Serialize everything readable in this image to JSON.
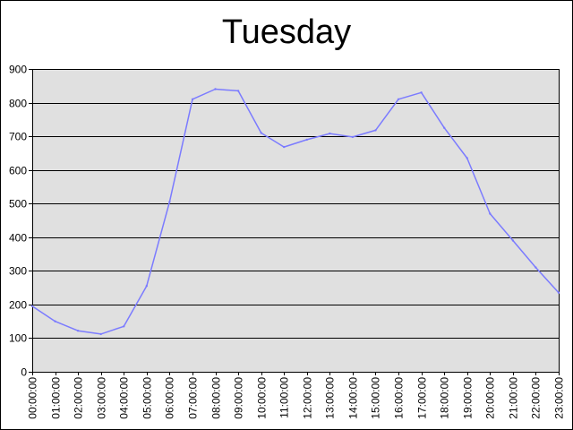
{
  "chart_data": {
    "type": "line",
    "title": "Tuesday",
    "xlabel": "",
    "ylabel": "",
    "x": [
      "00:00:00",
      "01:00:00",
      "02:00:00",
      "03:00:00",
      "04:00:00",
      "05:00:00",
      "06:00:00",
      "07:00:00",
      "08:00:00",
      "09:00:00",
      "10:00:00",
      "11:00:00",
      "12:00:00",
      "13:00:00",
      "14:00:00",
      "15:00:00",
      "16:00:00",
      "17:00:00",
      "18:00:00",
      "19:00:00",
      "20:00:00",
      "21:00:00",
      "22:00:00",
      "23:00:00"
    ],
    "series": [
      {
        "values": [
          195,
          150,
          122,
          112,
          135,
          255,
          505,
          810,
          840,
          835,
          710,
          668,
          690,
          708,
          698,
          718,
          810,
          830,
          725,
          635,
          470,
          390,
          310,
          235
        ],
        "color": "#7b7bff"
      }
    ],
    "ylim": [
      0,
      900
    ],
    "yticks": [
      0,
      100,
      200,
      300,
      400,
      500,
      600,
      700,
      800,
      900
    ],
    "grid": true,
    "legend": "none",
    "plot_background": "#e0e0e0",
    "gridline_color": "#000000"
  }
}
